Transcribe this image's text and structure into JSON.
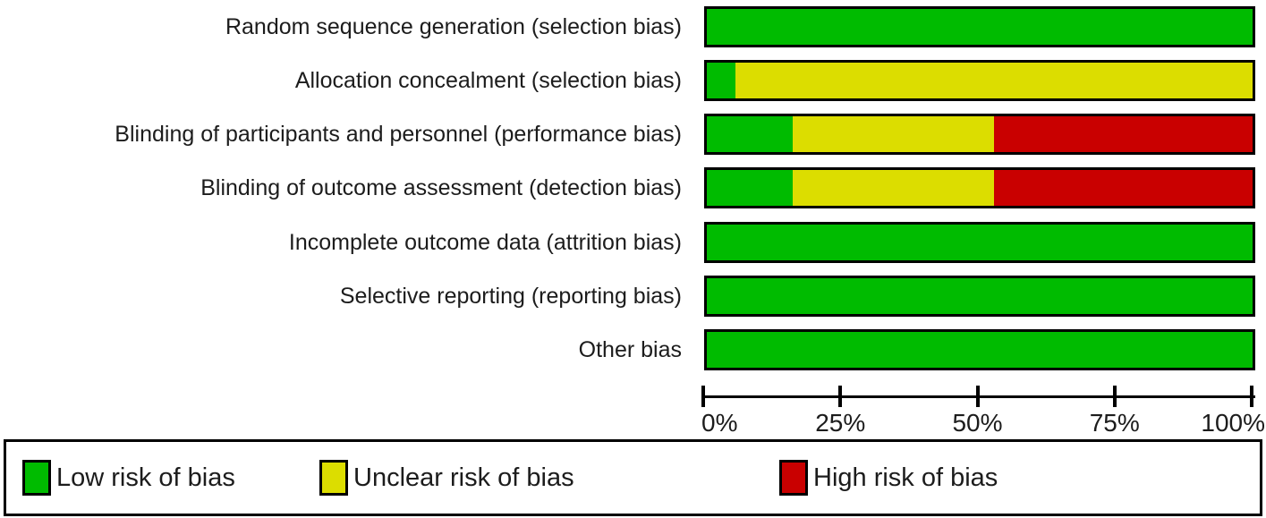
{
  "colors": {
    "low": "#00BB00",
    "unclear": "#DCDD00",
    "high": "#C90000",
    "border": "#000000",
    "text": "#1c1c1c"
  },
  "chart_data": {
    "type": "bar",
    "orientation": "horizontal",
    "stacked": true,
    "unit": "percent",
    "title": "",
    "xlabel": "",
    "ylabel": "",
    "xlim": [
      0,
      100
    ],
    "grid": false,
    "categories": [
      "Random sequence generation (selection bias)",
      "Allocation concealment (selection bias)",
      "Blinding of participants and personnel (performance bias)",
      "Blinding of outcome assessment (detection bias)",
      "Incomplete outcome data (attrition bias)",
      "Selective reporting (reporting bias)",
      "Other bias"
    ],
    "series": [
      {
        "name": "Low risk of bias",
        "color_key": "low",
        "values": [
          100,
          5.3,
          15.8,
          15.8,
          100,
          100,
          100
        ]
      },
      {
        "name": "Unclear risk of bias",
        "color_key": "unclear",
        "values": [
          0,
          94.7,
          36.8,
          36.8,
          0,
          0,
          0
        ]
      },
      {
        "name": "High risk of bias",
        "color_key": "high",
        "values": [
          0,
          0,
          47.4,
          47.4,
          0,
          0,
          0
        ]
      }
    ],
    "x_ticks": [
      {
        "label": "0%",
        "value": 0
      },
      {
        "label": "25%",
        "value": 25
      },
      {
        "label": "50%",
        "value": 50
      },
      {
        "label": "75%",
        "value": 75
      },
      {
        "label": "100%",
        "value": 100
      }
    ],
    "legend_position": "bottom",
    "legend": [
      {
        "label": "Low risk of bias",
        "color_key": "low"
      },
      {
        "label": "Unclear risk of bias",
        "color_key": "unclear"
      },
      {
        "label": "High risk of bias",
        "color_key": "high"
      }
    ]
  }
}
